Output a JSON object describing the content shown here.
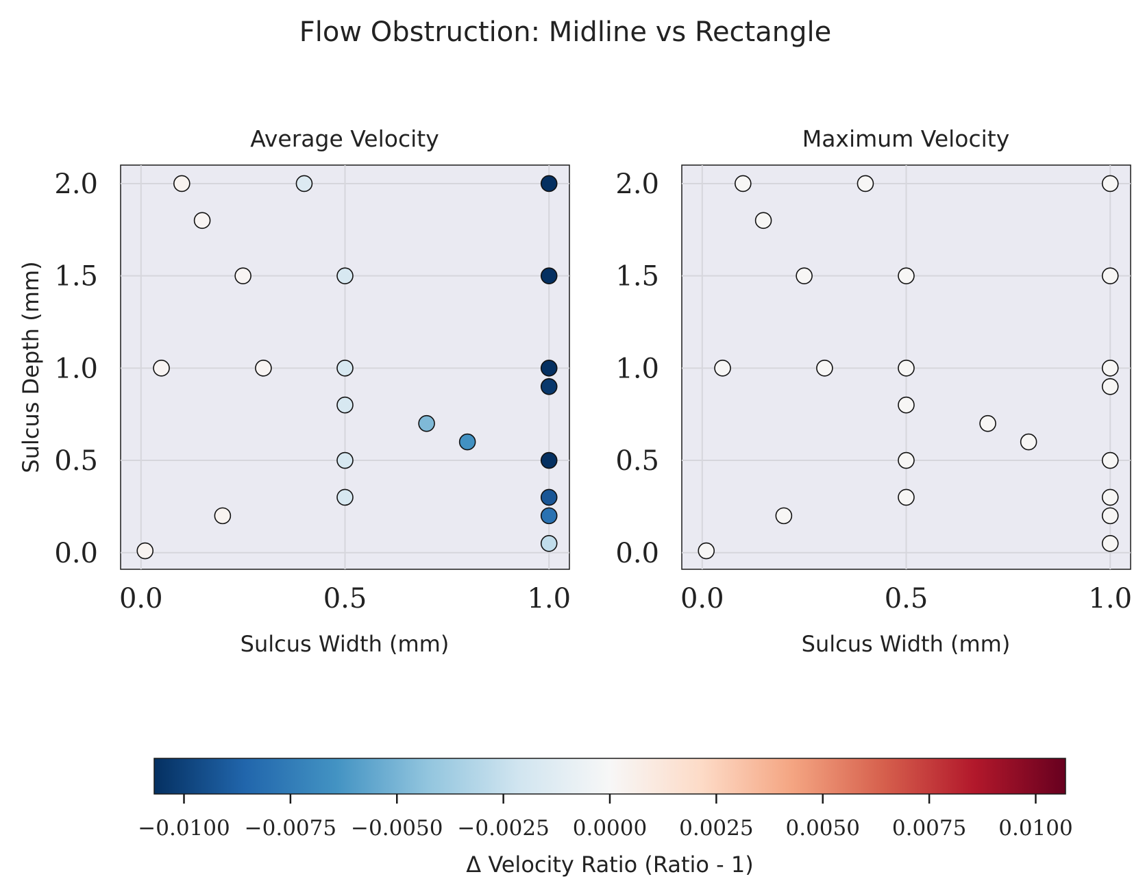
{
  "figure": {
    "title": "Flow Obstruction: Midline vs Rectangle"
  },
  "chart_data": [
    {
      "type": "scatter",
      "title": "Average Velocity",
      "xlabel": "Sulcus Width (mm)",
      "ylabel": "Sulcus Depth (mm)",
      "xlim": [
        -0.05,
        1.05
      ],
      "ylim": [
        -0.09,
        2.1
      ],
      "xticks": [
        "0.0",
        "0.5",
        "1.0"
      ],
      "yticks": [
        "0.0",
        "0.5",
        "1.0",
        "1.5",
        "2.0"
      ],
      "grid": true,
      "points": [
        {
          "x": 0.1,
          "y": 2.0,
          "c": 0.0003
        },
        {
          "x": 0.4,
          "y": 2.0,
          "c": -0.0015
        },
        {
          "x": 1.0,
          "y": 2.0,
          "c": -0.0107
        },
        {
          "x": 0.15,
          "y": 1.8,
          "c": 0.0002
        },
        {
          "x": 0.25,
          "y": 1.5,
          "c": 0.0002
        },
        {
          "x": 0.5,
          "y": 1.5,
          "c": -0.0018
        },
        {
          "x": 1.0,
          "y": 1.5,
          "c": -0.0107
        },
        {
          "x": 0.05,
          "y": 1.0,
          "c": 0.0002
        },
        {
          "x": 0.3,
          "y": 1.0,
          "c": 0.0002
        },
        {
          "x": 0.5,
          "y": 1.0,
          "c": -0.0018
        },
        {
          "x": 1.0,
          "y": 1.0,
          "c": -0.0107
        },
        {
          "x": 1.0,
          "y": 0.9,
          "c": -0.0104
        },
        {
          "x": 0.5,
          "y": 0.8,
          "c": -0.0018
        },
        {
          "x": 0.7,
          "y": 0.7,
          "c": -0.0048
        },
        {
          "x": 0.8,
          "y": 0.6,
          "c": -0.0065
        },
        {
          "x": 0.5,
          "y": 0.5,
          "c": -0.0018
        },
        {
          "x": 1.0,
          "y": 0.5,
          "c": -0.0107
        },
        {
          "x": 0.5,
          "y": 0.3,
          "c": -0.0018
        },
        {
          "x": 1.0,
          "y": 0.3,
          "c": -0.0092
        },
        {
          "x": 0.2,
          "y": 0.2,
          "c": 0.0003
        },
        {
          "x": 1.0,
          "y": 0.2,
          "c": -0.008
        },
        {
          "x": 0.01,
          "y": 0.01,
          "c": 0.0003
        },
        {
          "x": 1.0,
          "y": 0.05,
          "c": -0.0027
        }
      ]
    },
    {
      "type": "scatter",
      "title": "Maximum Velocity",
      "xlabel": "Sulcus Width (mm)",
      "ylabel": "",
      "xlim": [
        -0.05,
        1.05
      ],
      "ylim": [
        -0.09,
        2.1
      ],
      "xticks": [
        "0.0",
        "0.5",
        "1.0"
      ],
      "yticks": [
        "0.0",
        "0.5",
        "1.0",
        "1.5",
        "2.0"
      ],
      "grid": true,
      "points": [
        {
          "x": 0.1,
          "y": 2.0,
          "c": 0.0001
        },
        {
          "x": 0.4,
          "y": 2.0,
          "c": 0.0001
        },
        {
          "x": 1.0,
          "y": 2.0,
          "c": 0.0001
        },
        {
          "x": 0.15,
          "y": 1.8,
          "c": 0.0001
        },
        {
          "x": 0.25,
          "y": 1.5,
          "c": 0.0001
        },
        {
          "x": 0.5,
          "y": 1.5,
          "c": 0.0001
        },
        {
          "x": 1.0,
          "y": 1.5,
          "c": 0.0001
        },
        {
          "x": 0.05,
          "y": 1.0,
          "c": 0.0001
        },
        {
          "x": 0.3,
          "y": 1.0,
          "c": 0.0001
        },
        {
          "x": 0.5,
          "y": 1.0,
          "c": 0.0001
        },
        {
          "x": 1.0,
          "y": 1.0,
          "c": 0.0001
        },
        {
          "x": 1.0,
          "y": 0.9,
          "c": 0.0001
        },
        {
          "x": 0.5,
          "y": 0.8,
          "c": 0.0001
        },
        {
          "x": 0.7,
          "y": 0.7,
          "c": 0.0001
        },
        {
          "x": 0.8,
          "y": 0.6,
          "c": 0.0001
        },
        {
          "x": 0.5,
          "y": 0.5,
          "c": 0.0001
        },
        {
          "x": 1.0,
          "y": 0.5,
          "c": 0.0001
        },
        {
          "x": 0.5,
          "y": 0.3,
          "c": 0.0001
        },
        {
          "x": 1.0,
          "y": 0.3,
          "c": 0.0001
        },
        {
          "x": 0.2,
          "y": 0.2,
          "c": 0.0001
        },
        {
          "x": 1.0,
          "y": 0.2,
          "c": 0.0001
        },
        {
          "x": 0.01,
          "y": 0.01,
          "c": 0.0001
        },
        {
          "x": 1.0,
          "y": 0.05,
          "c": 0.0001
        }
      ]
    }
  ],
  "colorbar": {
    "label": "Δ Velocity Ratio (Ratio - 1)",
    "colormap": "RdBu_r",
    "range": [
      -0.0107,
      0.0107
    ],
    "ticks": [
      {
        "value": -0.01,
        "label": "−0.0100"
      },
      {
        "value": -0.0075,
        "label": "−0.0075"
      },
      {
        "value": -0.005,
        "label": "−0.0050"
      },
      {
        "value": -0.0025,
        "label": "−0.0025"
      },
      {
        "value": 0.0,
        "label": "0.0000"
      },
      {
        "value": 0.0025,
        "label": "0.0025"
      },
      {
        "value": 0.005,
        "label": "0.0050"
      },
      {
        "value": 0.0075,
        "label": "0.0075"
      },
      {
        "value": 0.01,
        "label": "0.0100"
      }
    ],
    "colors": [
      "#053061",
      "#2166ac",
      "#4393c3",
      "#92c5de",
      "#d1e5f0",
      "#f7f7f7",
      "#fddbc7",
      "#f4a582",
      "#d6604d",
      "#b2182b",
      "#67001f"
    ]
  },
  "style": {
    "plot_background": "#eaeaf2",
    "grid_color": "#d6d6dc",
    "marker_edge": "#111111"
  }
}
